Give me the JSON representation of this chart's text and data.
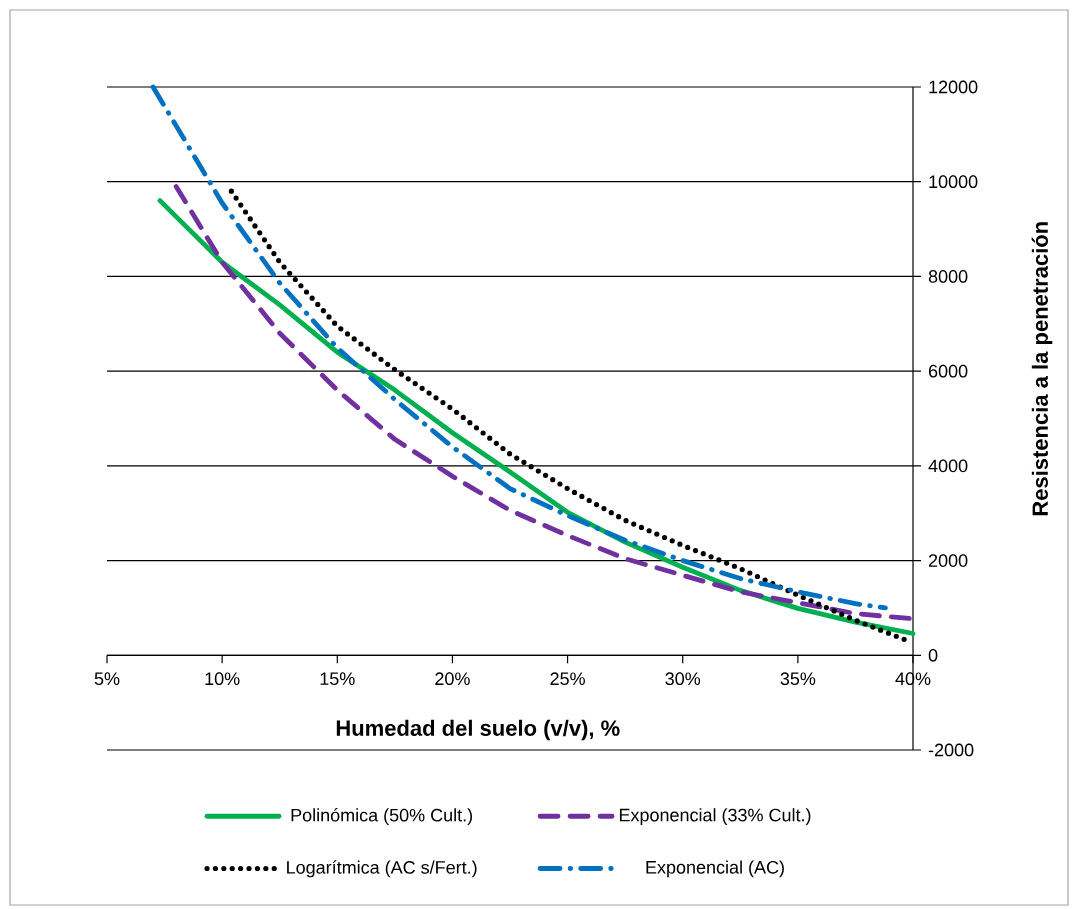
{
  "chart_data": {
    "type": "line",
    "xlabel": "Humedad del suelo (v/v), %",
    "ylabel": "Resistencia a la penetración",
    "xlim": [
      5,
      40
    ],
    "ylim": [
      -2000,
      12000
    ],
    "xticks": [
      {
        "value": 5,
        "label": "5%"
      },
      {
        "value": 10,
        "label": "10%"
      },
      {
        "value": 15,
        "label": "15%"
      },
      {
        "value": 20,
        "label": "20%"
      },
      {
        "value": 25,
        "label": "25%"
      },
      {
        "value": 30,
        "label": "30%"
      },
      {
        "value": 35,
        "label": "35%"
      },
      {
        "value": 40,
        "label": "40%"
      }
    ],
    "yticks": [
      -2000,
      0,
      2000,
      4000,
      6000,
      8000,
      10000,
      12000
    ],
    "grid": "y",
    "legend": "bottom",
    "series": [
      {
        "name": "Polinómica (50% Cult.)",
        "color": "#00b050",
        "line_style": "solid",
        "x": [
          7.3,
          10,
          12.5,
          15,
          17.5,
          20,
          22.5,
          25,
          27.5,
          30,
          32.5,
          35,
          37.5,
          40
        ],
        "values": [
          9600,
          8300,
          7400,
          6400,
          5600,
          4700,
          3870,
          3020,
          2390,
          1860,
          1370,
          990,
          700,
          460
        ]
      },
      {
        "name": "Exponencial (33% Cult.)",
        "color": "#7030a0",
        "line_style": "dashed",
        "x": [
          8,
          10,
          12.5,
          15,
          17.5,
          20,
          22.5,
          25,
          27.5,
          30,
          32.5,
          35,
          37.5,
          40
        ],
        "values": [
          9900,
          8300,
          6800,
          5600,
          4560,
          3780,
          3060,
          2530,
          2040,
          1690,
          1340,
          1110,
          880,
          770
        ]
      },
      {
        "name": "Logarítmica (AC s/Fert.)",
        "color": "#000000",
        "line_style": "dotted",
        "x": [
          10.4,
          12.5,
          15,
          17.5,
          20,
          22.5,
          25,
          27.5,
          30,
          32.5,
          35,
          37.5,
          39.7
        ],
        "values": [
          9800,
          8300,
          6950,
          6030,
          5200,
          4250,
          3520,
          2850,
          2320,
          1830,
          1270,
          740,
          320
        ]
      },
      {
        "name": "Exponencial (AC)",
        "color": "#0070c0",
        "line_style": "dashdot",
        "x": [
          7.0,
          10,
          12.5,
          15,
          17.5,
          20,
          22.5,
          25,
          27.5,
          30,
          32.5,
          35,
          37.5,
          38.8
        ],
        "values": [
          12000,
          9550,
          7860,
          6490,
          5400,
          4400,
          3520,
          2950,
          2430,
          2000,
          1620,
          1340,
          1090,
          1000
        ]
      }
    ]
  }
}
